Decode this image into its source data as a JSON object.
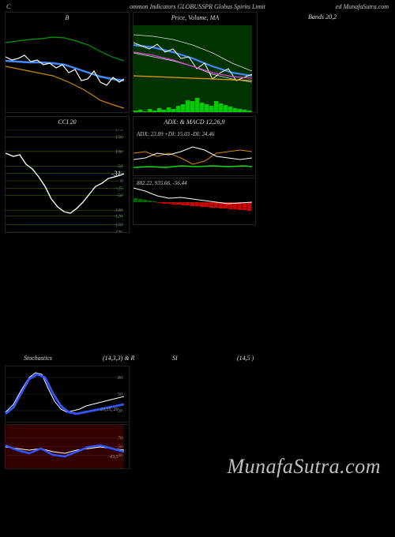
{
  "header": {
    "left": "C",
    "center": "ommon  Indicators GLOBUSSPR Globus Spirits Limit",
    "right": "ed MunafaSutra.com"
  },
  "row1": {
    "panel_a": {
      "title": "B",
      "width": 150,
      "height": 110,
      "bg": "#000000",
      "lines": [
        {
          "color": "#009900",
          "width": 1.2,
          "points": [
            [
              0,
              22
            ],
            [
              15,
              20
            ],
            [
              30,
              18
            ],
            [
              45,
              17
            ],
            [
              60,
              15
            ],
            [
              75,
              16
            ],
            [
              90,
              20
            ],
            [
              105,
              25
            ],
            [
              120,
              33
            ],
            [
              135,
              40
            ],
            [
              150,
              45
            ]
          ]
        },
        {
          "color": "#4488ff",
          "width": 2.5,
          "points": [
            [
              0,
              45
            ],
            [
              15,
              46
            ],
            [
              30,
              47
            ],
            [
              45,
              47
            ],
            [
              60,
              48
            ],
            [
              75,
              50
            ],
            [
              90,
              55
            ],
            [
              105,
              60
            ],
            [
              120,
              65
            ],
            [
              135,
              68
            ],
            [
              150,
              70
            ]
          ]
        },
        {
          "color": "#ffffff",
          "width": 1.2,
          "points": [
            [
              0,
              40
            ],
            [
              8,
              44
            ],
            [
              16,
              42
            ],
            [
              24,
              38
            ],
            [
              32,
              46
            ],
            [
              40,
              44
            ],
            [
              48,
              50
            ],
            [
              56,
              48
            ],
            [
              64,
              54
            ],
            [
              72,
              50
            ],
            [
              80,
              60
            ],
            [
              88,
              56
            ],
            [
              96,
              70
            ],
            [
              104,
              68
            ],
            [
              112,
              58
            ],
            [
              120,
              72
            ],
            [
              128,
              76
            ],
            [
              136,
              66
            ],
            [
              144,
              72
            ],
            [
              150,
              68
            ]
          ]
        },
        {
          "color": "#cc8800",
          "width": 1.2,
          "points": [
            [
              0,
              52
            ],
            [
              20,
              56
            ],
            [
              40,
              60
            ],
            [
              60,
              64
            ],
            [
              80,
              72
            ],
            [
              100,
              82
            ],
            [
              120,
              95
            ],
            [
              140,
              102
            ],
            [
              150,
              105
            ]
          ]
        }
      ]
    },
    "panel_b": {
      "title": "Price,  Volume,  MA",
      "overlay": "Bollinger",
      "width": 150,
      "height": 110,
      "bg": "#003300",
      "lines": [
        {
          "color": "#dddddd",
          "width": 0.8,
          "points": [
            [
              0,
              12
            ],
            [
              25,
              14
            ],
            [
              50,
              18
            ],
            [
              75,
              25
            ],
            [
              100,
              35
            ],
            [
              125,
              48
            ],
            [
              150,
              58
            ]
          ]
        },
        {
          "color": "#dddddd",
          "width": 0.8,
          "points": [
            [
              0,
              35
            ],
            [
              25,
              40
            ],
            [
              50,
              45
            ],
            [
              75,
              52
            ],
            [
              100,
              62
            ],
            [
              125,
              68
            ],
            [
              150,
              72
            ]
          ]
        },
        {
          "color": "#4488ff",
          "width": 2.2,
          "points": [
            [
              0,
              25
            ],
            [
              25,
              28
            ],
            [
              50,
              34
            ],
            [
              75,
              42
            ],
            [
              100,
              52
            ],
            [
              125,
              60
            ],
            [
              150,
              64
            ]
          ]
        },
        {
          "color": "#ffffff",
          "width": 1.0,
          "points": [
            [
              0,
              22
            ],
            [
              10,
              26
            ],
            [
              20,
              30
            ],
            [
              30,
              24
            ],
            [
              40,
              34
            ],
            [
              50,
              30
            ],
            [
              60,
              42
            ],
            [
              70,
              40
            ],
            [
              80,
              55
            ],
            [
              90,
              48
            ],
            [
              100,
              68
            ],
            [
              110,
              60
            ],
            [
              120,
              55
            ],
            [
              130,
              70
            ],
            [
              140,
              66
            ],
            [
              150,
              62
            ]
          ]
        },
        {
          "color": "#dd44dd",
          "width": 1.2,
          "points": [
            [
              0,
              34
            ],
            [
              25,
              38
            ],
            [
              50,
              44
            ],
            [
              75,
              52
            ],
            [
              100,
              60
            ],
            [
              125,
              65
            ],
            [
              150,
              67
            ]
          ]
        },
        {
          "color": "#ee9900",
          "width": 1.2,
          "points": [
            [
              0,
              64
            ],
            [
              25,
              65
            ],
            [
              50,
              66
            ],
            [
              75,
              67
            ],
            [
              100,
              68
            ],
            [
              125,
              69
            ],
            [
              150,
              70
            ]
          ]
        }
      ],
      "volume": {
        "color": "#00cc00",
        "bars": [
          2,
          3,
          1,
          4,
          2,
          5,
          3,
          6,
          4,
          8,
          10,
          15,
          14,
          18,
          12,
          10,
          8,
          14,
          11,
          9,
          7,
          5,
          4,
          3,
          2
        ]
      }
    },
    "panel_c": {
      "title": "Bands 20,2",
      "width": 150,
      "height": 110
    }
  },
  "row2": {
    "panel_a": {
      "title": "CCI 20",
      "width": 150,
      "height": 130,
      "grid_color": "#336600",
      "yticks": [
        175,
        150,
        100,
        50,
        25,
        0,
        -25,
        -50,
        -100,
        -120,
        -150,
        -175
      ],
      "line": {
        "color": "#ffffff",
        "width": 1.4,
        "points": [
          [
            0,
            30
          ],
          [
            10,
            34
          ],
          [
            18,
            32
          ],
          [
            26,
            44
          ],
          [
            34,
            50
          ],
          [
            42,
            60
          ],
          [
            50,
            72
          ],
          [
            58,
            88
          ],
          [
            66,
            98
          ],
          [
            74,
            104
          ],
          [
            82,
            106
          ],
          [
            90,
            100
          ],
          [
            98,
            92
          ],
          [
            106,
            82
          ],
          [
            114,
            72
          ],
          [
            122,
            68
          ],
          [
            130,
            62
          ],
          [
            138,
            60
          ],
          [
            145,
            58
          ],
          [
            150,
            56
          ]
        ]
      },
      "end_label": "-31",
      "last_tick": "9"
    },
    "panel_b": {
      "adx": {
        "title": "ADX:  & MACD 12,26,9",
        "text": "ADX: 23.89 +DI: 15.03 -DI: 24.46",
        "height": 58,
        "lines": [
          {
            "color": "#00dd00",
            "width": 1.5,
            "points": [
              [
                0,
                48
              ],
              [
                20,
                47
              ],
              [
                40,
                48
              ],
              [
                60,
                46
              ],
              [
                80,
                47
              ],
              [
                100,
                46
              ],
              [
                120,
                47
              ],
              [
                140,
                46
              ],
              [
                150,
                47
              ]
            ]
          },
          {
            "color": "#dd8800",
            "width": 1.0,
            "points": [
              [
                0,
                30
              ],
              [
                15,
                28
              ],
              [
                30,
                34
              ],
              [
                45,
                30
              ],
              [
                60,
                36
              ],
              [
                75,
                44
              ],
              [
                90,
                40
              ],
              [
                105,
                30
              ],
              [
                120,
                28
              ],
              [
                135,
                26
              ],
              [
                150,
                28
              ]
            ]
          },
          {
            "color": "#ffffff",
            "width": 1.0,
            "points": [
              [
                0,
                38
              ],
              [
                15,
                36
              ],
              [
                30,
                30
              ],
              [
                45,
                32
              ],
              [
                60,
                28
              ],
              [
                75,
                22
              ],
              [
                90,
                26
              ],
              [
                105,
                34
              ],
              [
                120,
                36
              ],
              [
                135,
                38
              ],
              [
                150,
                36
              ]
            ]
          }
        ]
      },
      "macd": {
        "text": "882.22,  935.66,  -56.44",
        "height": 58,
        "line": {
          "color": "#ffffff",
          "width": 1.0,
          "points": [
            [
              0,
              12
            ],
            [
              15,
              16
            ],
            [
              30,
              22
            ],
            [
              45,
              25
            ],
            [
              60,
              24
            ],
            [
              75,
              26
            ],
            [
              90,
              28
            ],
            [
              105,
              30
            ],
            [
              120,
              32
            ],
            [
              135,
              31
            ],
            [
              150,
              30
            ]
          ]
        },
        "hist_pos": {
          "color": "#006600",
          "bars": [
            5,
            4,
            3,
            2,
            1,
            0,
            0,
            0,
            0,
            0,
            0,
            0,
            0,
            0,
            0,
            0,
            0,
            0,
            0,
            0,
            0,
            0,
            0,
            0,
            0
          ]
        },
        "hist_neg": {
          "color": "#cc0000",
          "bars": [
            0,
            0,
            0,
            0,
            0,
            1,
            2,
            2,
            3,
            3,
            4,
            4,
            5,
            5,
            6,
            6,
            7,
            7,
            8,
            8,
            9,
            9,
            10,
            10,
            11
          ]
        }
      }
    }
  },
  "row3": {
    "title_left": "Stochastics",
    "title_mid": "(14,3,3) & R",
    "title_si": "SI",
    "title_right": "(14,5                                )",
    "stoch": {
      "width": 150,
      "height": 70,
      "yticks": [
        80,
        50,
        20
      ],
      "lines": [
        {
          "color": "#ffffff",
          "width": 1.0,
          "points": [
            [
              0,
              58
            ],
            [
              10,
              48
            ],
            [
              20,
              30
            ],
            [
              30,
              14
            ],
            [
              38,
              8
            ],
            [
              46,
              10
            ],
            [
              54,
              28
            ],
            [
              62,
              44
            ],
            [
              70,
              54
            ],
            [
              78,
              58
            ],
            [
              86,
              56
            ],
            [
              94,
              54
            ],
            [
              102,
              50
            ],
            [
              110,
              48
            ],
            [
              118,
              46
            ],
            [
              126,
              44
            ],
            [
              134,
              42
            ],
            [
              142,
              40
            ],
            [
              150,
              38
            ]
          ]
        },
        {
          "color": "#3355ff",
          "width": 2.8,
          "points": [
            [
              0,
              60
            ],
            [
              10,
              52
            ],
            [
              20,
              34
            ],
            [
              30,
              16
            ],
            [
              40,
              10
            ],
            [
              50,
              14
            ],
            [
              60,
              34
            ],
            [
              70,
              50
            ],
            [
              80,
              58
            ],
            [
              90,
              60
            ],
            [
              100,
              58
            ],
            [
              110,
              56
            ],
            [
              120,
              54
            ],
            [
              130,
              52
            ],
            [
              140,
              50
            ],
            [
              150,
              48
            ]
          ]
        }
      ],
      "end_label": "23,15, 20"
    },
    "rsi": {
      "width": 150,
      "height": 55,
      "bg": "#330000",
      "yticks": [
        70,
        50,
        30
      ],
      "lines": [
        {
          "color": "#ffffff",
          "width": 1.0,
          "points": [
            [
              0,
              28
            ],
            [
              15,
              30
            ],
            [
              30,
              32
            ],
            [
              45,
              30
            ],
            [
              60,
              34
            ],
            [
              75,
              36
            ],
            [
              90,
              32
            ],
            [
              105,
              30
            ],
            [
              120,
              28
            ],
            [
              135,
              30
            ],
            [
              150,
              32
            ]
          ]
        },
        {
          "color": "#3355ff",
          "width": 2.5,
          "points": [
            [
              0,
              26
            ],
            [
              15,
              32
            ],
            [
              30,
              36
            ],
            [
              45,
              30
            ],
            [
              60,
              38
            ],
            [
              75,
              40
            ],
            [
              90,
              34
            ],
            [
              105,
              28
            ],
            [
              120,
              26
            ],
            [
              135,
              30
            ],
            [
              150,
              34
            ]
          ]
        }
      ],
      "end_label": "43,5"
    }
  },
  "watermark": "MunafaSutra.com"
}
